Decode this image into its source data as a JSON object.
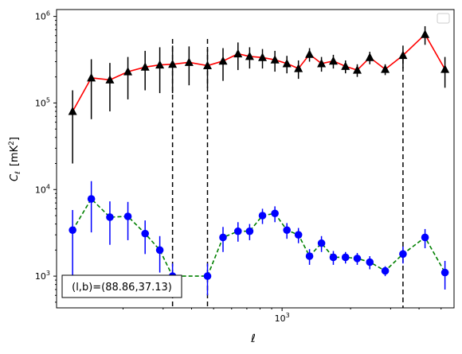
{
  "chart_data": {
    "type": "scatter",
    "x_scale": "log",
    "y_scale": "log",
    "xlim": [
      102,
      5700
    ],
    "ylim": [
      430,
      1200000
    ],
    "xlabel": "ℓ",
    "ylabel_main": "C",
    "ylabel_sub": "ℓ",
    "ylabel_unit": "[mK",
    "ylabel_unit_sup": "2",
    "ylabel_unit_close": "]",
    "x_major_ticks": [
      {
        "value": 1000,
        "base": "10",
        "exp": "3"
      }
    ],
    "y_major_ticks": [
      {
        "value": 1000,
        "base": "10",
        "exp": "3"
      },
      {
        "value": 10000,
        "base": "10",
        "exp": "4"
      },
      {
        "value": 100000,
        "base": "10",
        "exp": "5"
      },
      {
        "value": 1000000,
        "base": "10",
        "exp": "6"
      }
    ],
    "grid": false,
    "legend": "top-right (empty)",
    "vlines": [
      330,
      470,
      3400
    ],
    "annotation": "(l,b)=(88.86,37.13)",
    "series": [
      {
        "color": "#ff0000",
        "marker": "triangle",
        "marker_color": "#000000",
        "errorbar_color": "#000000",
        "linestyle": "solid",
        "points": [
          {
            "x": 120,
            "y": 80000,
            "lo": 20000,
            "hi": 140000
          },
          {
            "x": 145,
            "y": 195000,
            "lo": 65000,
            "hi": 320000
          },
          {
            "x": 175,
            "y": 185000,
            "lo": 80000,
            "hi": 290000
          },
          {
            "x": 210,
            "y": 230000,
            "lo": 110000,
            "hi": 340000
          },
          {
            "x": 250,
            "y": 260000,
            "lo": 140000,
            "hi": 400000
          },
          {
            "x": 290,
            "y": 275000,
            "lo": 130000,
            "hi": 440000
          },
          {
            "x": 330,
            "y": 280000,
            "lo": 130000,
            "hi": 460000
          },
          {
            "x": 390,
            "y": 295000,
            "lo": 160000,
            "hi": 450000
          },
          {
            "x": 470,
            "y": 270000,
            "lo": 150000,
            "hi": 420000
          },
          {
            "x": 550,
            "y": 305000,
            "lo": 180000,
            "hi": 430000
          },
          {
            "x": 640,
            "y": 370000,
            "lo": 240000,
            "hi": 500000
          },
          {
            "x": 720,
            "y": 345000,
            "lo": 250000,
            "hi": 440000
          },
          {
            "x": 820,
            "y": 335000,
            "lo": 250000,
            "hi": 420000
          },
          {
            "x": 930,
            "y": 315000,
            "lo": 230000,
            "hi": 400000
          },
          {
            "x": 1050,
            "y": 285000,
            "lo": 220000,
            "hi": 350000
          },
          {
            "x": 1180,
            "y": 250000,
            "lo": 190000,
            "hi": 310000
          },
          {
            "x": 1320,
            "y": 365000,
            "lo": 300000,
            "hi": 430000
          },
          {
            "x": 1490,
            "y": 285000,
            "lo": 230000,
            "hi": 340000
          },
          {
            "x": 1680,
            "y": 305000,
            "lo": 250000,
            "hi": 360000
          },
          {
            "x": 1900,
            "y": 265000,
            "lo": 220000,
            "hi": 310000
          },
          {
            "x": 2140,
            "y": 240000,
            "lo": 200000,
            "hi": 280000
          },
          {
            "x": 2430,
            "y": 335000,
            "lo": 280000,
            "hi": 390000
          },
          {
            "x": 2840,
            "y": 245000,
            "lo": 210000,
            "hi": 280000
          },
          {
            "x": 3400,
            "y": 355000,
            "lo": 250000,
            "hi": 460000
          },
          {
            "x": 4250,
            "y": 620000,
            "lo": 470000,
            "hi": 770000
          },
          {
            "x": 5200,
            "y": 245000,
            "lo": 150000,
            "hi": 340000
          }
        ]
      },
      {
        "color": "#008000",
        "marker": "circle",
        "marker_color": "#0000ff",
        "errorbar_color": "#0000ff",
        "linestyle": "dashed",
        "points": [
          {
            "x": 120,
            "y": 3400,
            "lo": 1000,
            "hi": 5800
          },
          {
            "x": 145,
            "y": 7800,
            "lo": 3200,
            "hi": 12500
          },
          {
            "x": 175,
            "y": 4800,
            "lo": 2300,
            "hi": 7300
          },
          {
            "x": 210,
            "y": 4900,
            "lo": 2600,
            "hi": 7200
          },
          {
            "x": 250,
            "y": 3100,
            "lo": 1800,
            "hi": 4400
          },
          {
            "x": 290,
            "y": 2000,
            "lo": 1100,
            "hi": 2900
          },
          {
            "x": 330,
            "y": 1000,
            "lo": 600,
            "hi": 1400
          },
          {
            "x": 470,
            "y": 1000,
            "lo": 600,
            "hi": 1400
          },
          {
            "x": 550,
            "y": 2800,
            "lo": 1900,
            "hi": 3700
          },
          {
            "x": 640,
            "y": 3300,
            "lo": 2500,
            "hi": 4200
          },
          {
            "x": 720,
            "y": 3300,
            "lo": 2600,
            "hi": 4000
          },
          {
            "x": 820,
            "y": 5000,
            "lo": 4000,
            "hi": 6000
          },
          {
            "x": 930,
            "y": 5300,
            "lo": 4200,
            "hi": 6400
          },
          {
            "x": 1050,
            "y": 3400,
            "lo": 2700,
            "hi": 4100
          },
          {
            "x": 1180,
            "y": 3000,
            "lo": 2400,
            "hi": 3600
          },
          {
            "x": 1320,
            "y": 1700,
            "lo": 1350,
            "hi": 2050
          },
          {
            "x": 1490,
            "y": 2400,
            "lo": 1900,
            "hi": 2900
          },
          {
            "x": 1680,
            "y": 1650,
            "lo": 1350,
            "hi": 1950
          },
          {
            "x": 1900,
            "y": 1650,
            "lo": 1400,
            "hi": 1900
          },
          {
            "x": 2140,
            "y": 1600,
            "lo": 1350,
            "hi": 1850
          },
          {
            "x": 2430,
            "y": 1450,
            "lo": 1200,
            "hi": 1700
          },
          {
            "x": 2840,
            "y": 1150,
            "lo": 1000,
            "hi": 1300
          },
          {
            "x": 3400,
            "y": 1800,
            "lo": 1400,
            "hi": 2200
          },
          {
            "x": 4250,
            "y": 2800,
            "lo": 2100,
            "hi": 3500
          },
          {
            "x": 5200,
            "y": 1100,
            "lo": 700,
            "hi": 1500
          }
        ]
      }
    ]
  }
}
